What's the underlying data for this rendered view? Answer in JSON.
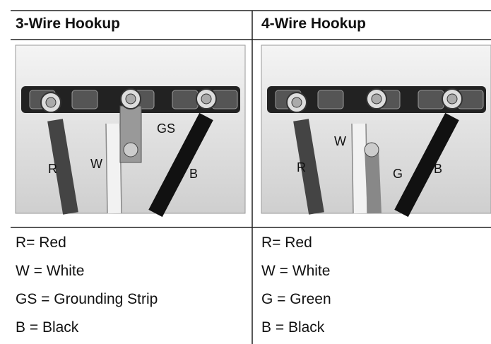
{
  "columns": [
    {
      "header": "3-Wire Hookup",
      "diagram_labels": [
        "W",
        "GS",
        "R",
        "B"
      ],
      "legend": [
        "R= Red",
        "W = White",
        "GS = Grounding Strip",
        "B = Black"
      ]
    },
    {
      "header": "4-Wire Hookup",
      "diagram_labels": [
        "W",
        "R",
        "G",
        "B"
      ],
      "legend": [
        "R= Red",
        "W = White",
        "G = Green",
        "B = Black"
      ]
    }
  ]
}
